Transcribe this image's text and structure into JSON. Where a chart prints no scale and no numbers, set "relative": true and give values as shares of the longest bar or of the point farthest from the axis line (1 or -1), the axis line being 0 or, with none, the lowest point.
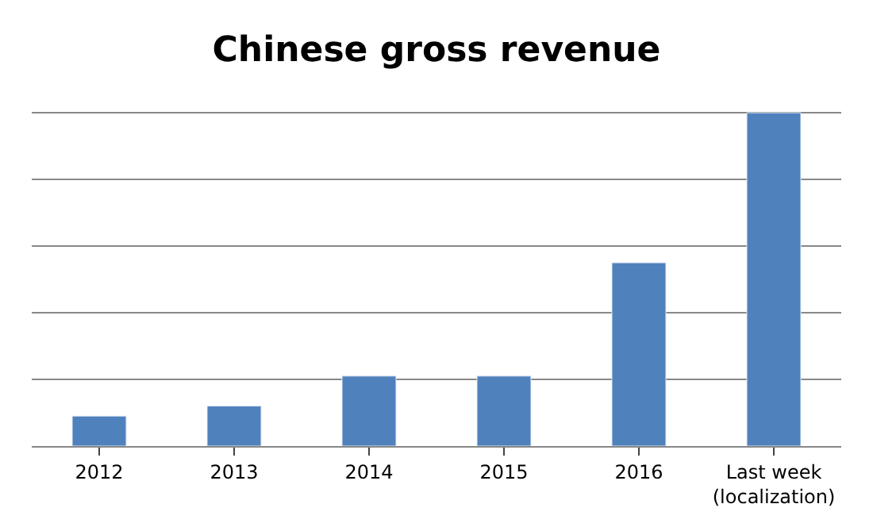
{
  "chart_data": {
    "type": "bar",
    "title": "Chinese gross revenue",
    "categories": [
      "2012",
      "2013",
      "2014",
      "2015",
      "2016",
      "Last week\n(localization)"
    ],
    "values": [
      0.09,
      0.12,
      0.21,
      0.21,
      0.55,
      1
    ],
    "color": "#4f81bd",
    "relative": true,
    "grid": "y",
    "legend": false
  }
}
